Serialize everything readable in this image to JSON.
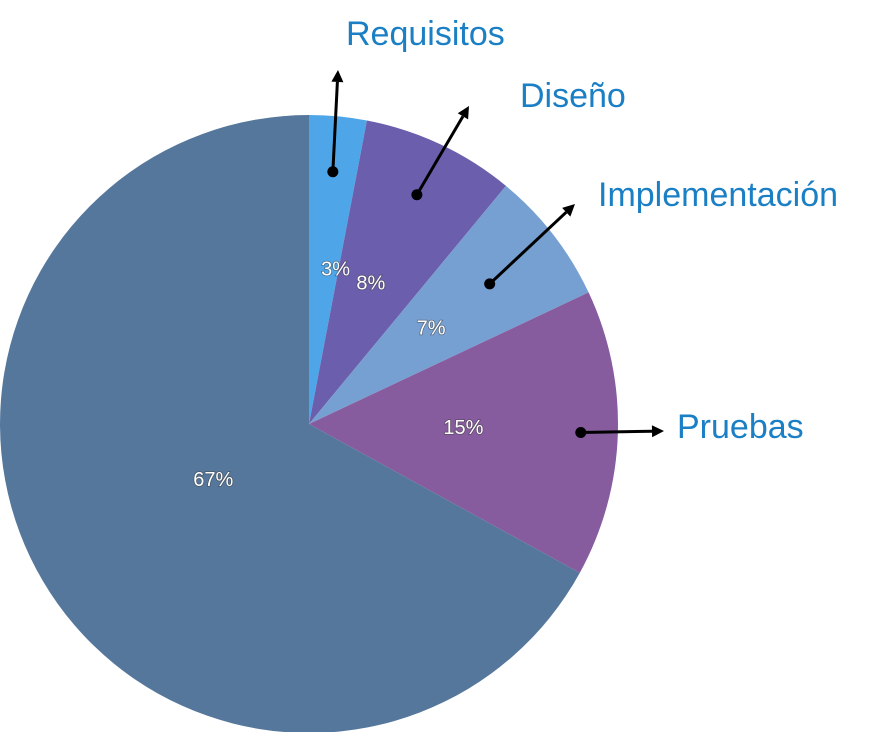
{
  "chart_data": {
    "type": "pie",
    "categories": [
      "Requisitos",
      "Diseño",
      "Implementación",
      "Pruebas",
      ""
    ],
    "values": [
      3,
      8,
      7,
      15,
      67
    ],
    "value_labels": [
      "3%",
      "8%",
      "7%",
      "15%",
      "67%"
    ],
    "colors": [
      "#4ea6e8",
      "#6b5fad",
      "#77a0d2",
      "#875c9e",
      "#55779c"
    ],
    "callout_color": "#1a7fc4",
    "start": "12 o'clock",
    "direction": "clockwise",
    "legend": "none"
  }
}
